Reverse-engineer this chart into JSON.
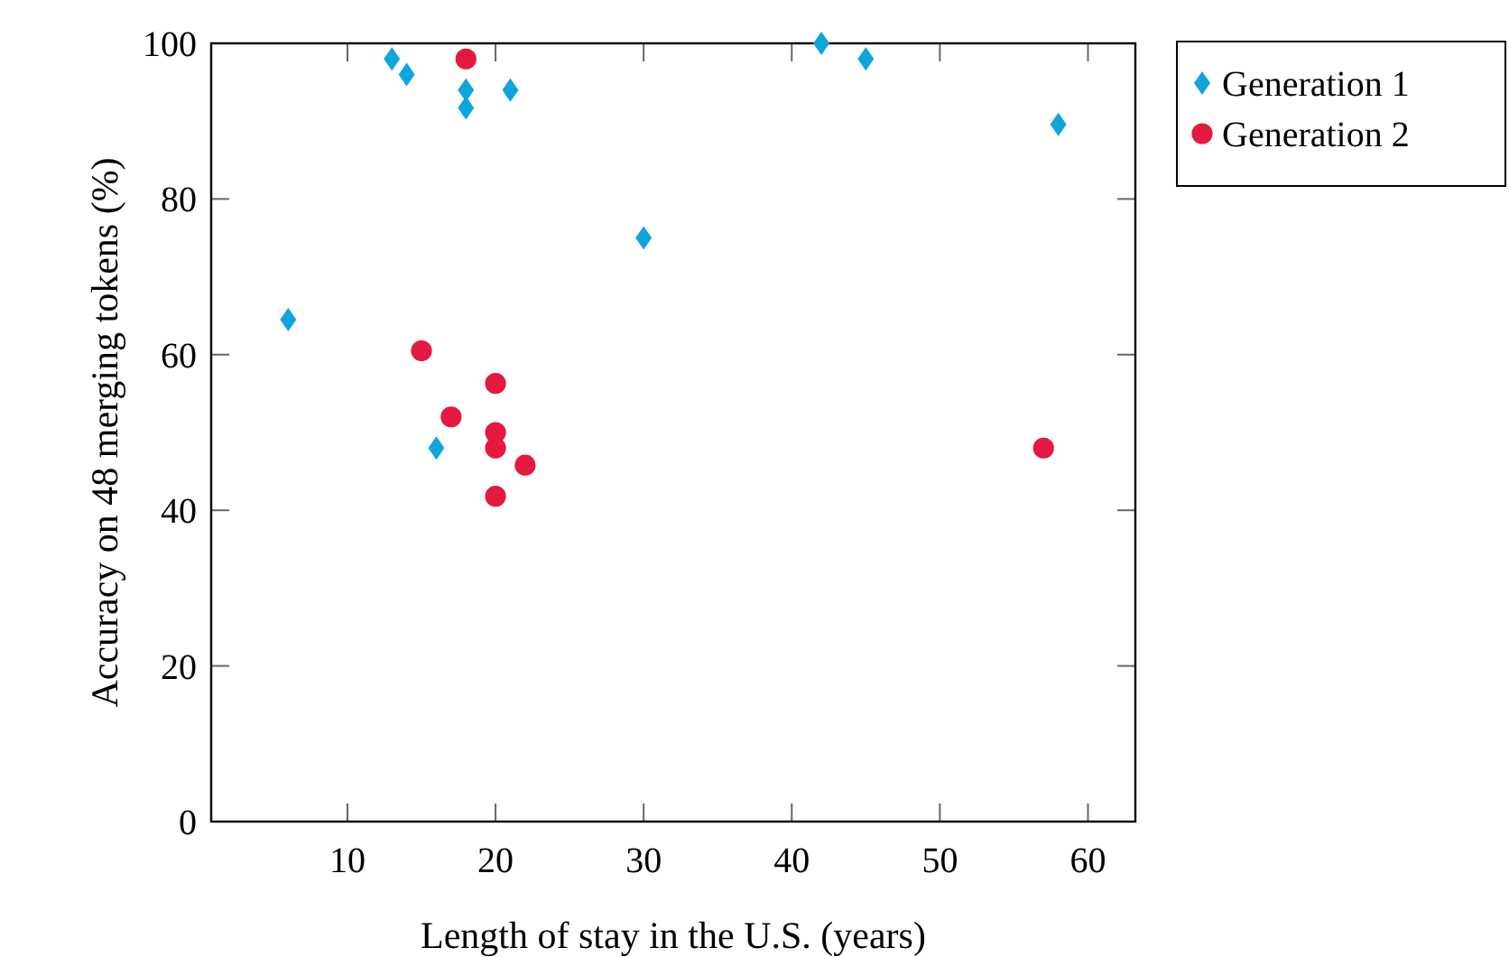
{
  "chart_data": {
    "type": "scatter",
    "xlabel": "Length of stay in the U.S. (years)",
    "ylabel": "Accuracy on 48 merging tokens (%)",
    "xlim": [
      0.8,
      63.2
    ],
    "xticks": [
      10,
      20,
      30,
      40,
      50,
      60
    ],
    "ylim": [
      0,
      100
    ],
    "yticks": [
      0,
      20,
      40,
      60,
      80,
      100
    ],
    "grid": false,
    "legend": "top right",
    "series": [
      {
        "name": "Generation 1",
        "color": "#0ea5dc",
        "marker": "diamond",
        "x": [
          6,
          13,
          14,
          16,
          18,
          18,
          21,
          30,
          42,
          45,
          58
        ],
        "values": [
          64.5,
          98,
          96,
          48,
          94,
          91.7,
          94,
          75,
          100,
          98,
          89.6
        ]
      },
      {
        "name": "Generation 2",
        "color": "#e3193f",
        "marker": "circle",
        "x": [
          18,
          15,
          17,
          20,
          20,
          20,
          20,
          22,
          57
        ],
        "values": [
          98,
          60.5,
          52,
          56.3,
          50,
          48,
          41.8,
          45.8,
          48
        ]
      }
    ]
  }
}
